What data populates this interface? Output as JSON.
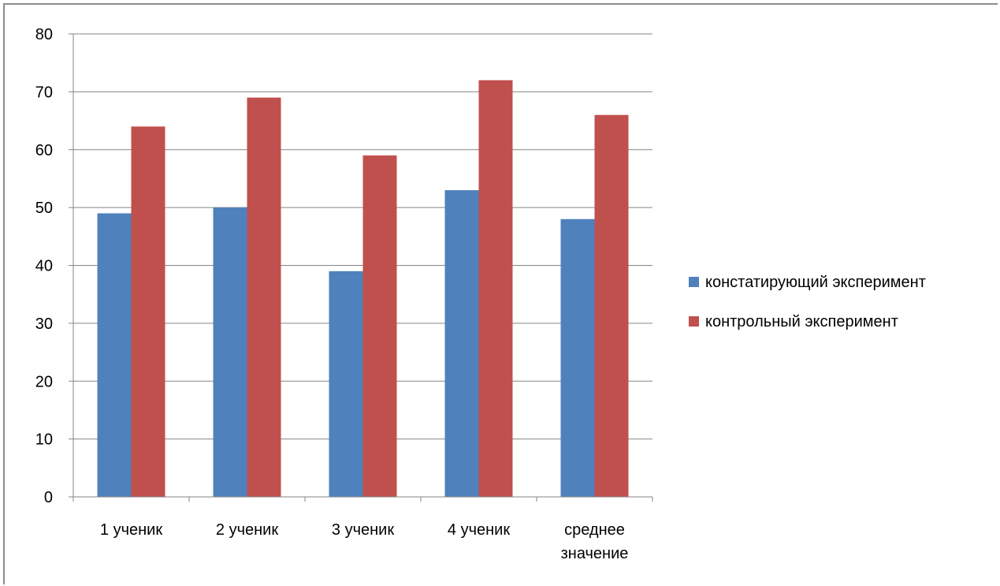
{
  "chart_data": {
    "type": "bar",
    "title": "",
    "xlabel": "",
    "ylabel": "",
    "categories": [
      [
        "1 ученик"
      ],
      [
        "2 ученик"
      ],
      [
        "3 ученик"
      ],
      [
        "4 ученик"
      ],
      [
        "среднее",
        "значение"
      ]
    ],
    "series": [
      {
        "name": "констатирующий эксперимент",
        "color": "#4f81bd",
        "values": [
          49,
          50,
          39,
          53,
          48
        ]
      },
      {
        "name": "контрольный эксперимент",
        "color": "#c0504d",
        "values": [
          64,
          69,
          59,
          72,
          66
        ]
      }
    ],
    "ylim": [
      0,
      80
    ],
    "yticks": [
      0,
      10,
      20,
      30,
      40,
      50,
      60,
      70,
      80
    ],
    "grid": true,
    "legend": "right"
  }
}
